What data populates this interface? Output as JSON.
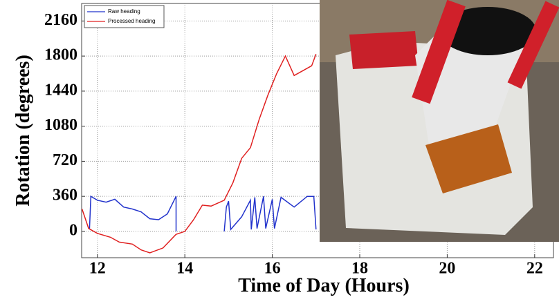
{
  "chart_data": {
    "type": "line",
    "xlabel": "Time of Day (Hours)",
    "ylabel": "Rotation (degrees)",
    "xlim": [
      11.64,
      22.43
    ],
    "xticks": [
      12,
      14,
      16,
      18,
      20,
      22
    ],
    "ylim": [
      -270,
      2340
    ],
    "yticks": [
      0,
      360,
      720,
      1080,
      1440,
      1800,
      2160
    ],
    "grid": true,
    "legend": "upper left",
    "series": [
      {
        "name": "Raw heading",
        "color": "#2233cc",
        "x": [
          11.82,
          11.85,
          12.0,
          12.2,
          12.4,
          12.6,
          12.8,
          13.0,
          13.2,
          13.4,
          13.6,
          13.8,
          13.8,
          14.3,
          14.9,
          14.95,
          15.0,
          15.05,
          15.3,
          15.5,
          15.52,
          15.6,
          15.65,
          15.8,
          15.85,
          16.0,
          16.05,
          16.2,
          16.5,
          16.8,
          16.95,
          17.0
        ],
        "values": [
          30,
          360,
          320,
          300,
          330,
          250,
          230,
          200,
          130,
          120,
          180,
          360,
          0,
          null,
          0,
          250,
          310,
          20,
          150,
          320,
          20,
          350,
          30,
          360,
          30,
          330,
          30,
          350,
          250,
          360,
          360,
          20
        ]
      },
      {
        "name": "Processed heading",
        "color": "#e02020",
        "x": [
          11.65,
          11.8,
          12.0,
          12.3,
          12.5,
          12.8,
          13.0,
          13.2,
          13.5,
          13.8,
          14.0,
          14.2,
          14.4,
          14.6,
          14.9,
          15.1,
          15.3,
          15.5,
          15.7,
          15.9,
          16.1,
          16.3,
          16.5,
          16.7,
          16.9,
          17.0
        ],
        "values": [
          230,
          30,
          -20,
          -60,
          -110,
          -130,
          -190,
          -220,
          -170,
          -30,
          0,
          120,
          270,
          260,
          320,
          500,
          750,
          860,
          1150,
          1400,
          1620,
          1800,
          1600,
          1650,
          1700,
          1820
        ]
      }
    ]
  }
}
